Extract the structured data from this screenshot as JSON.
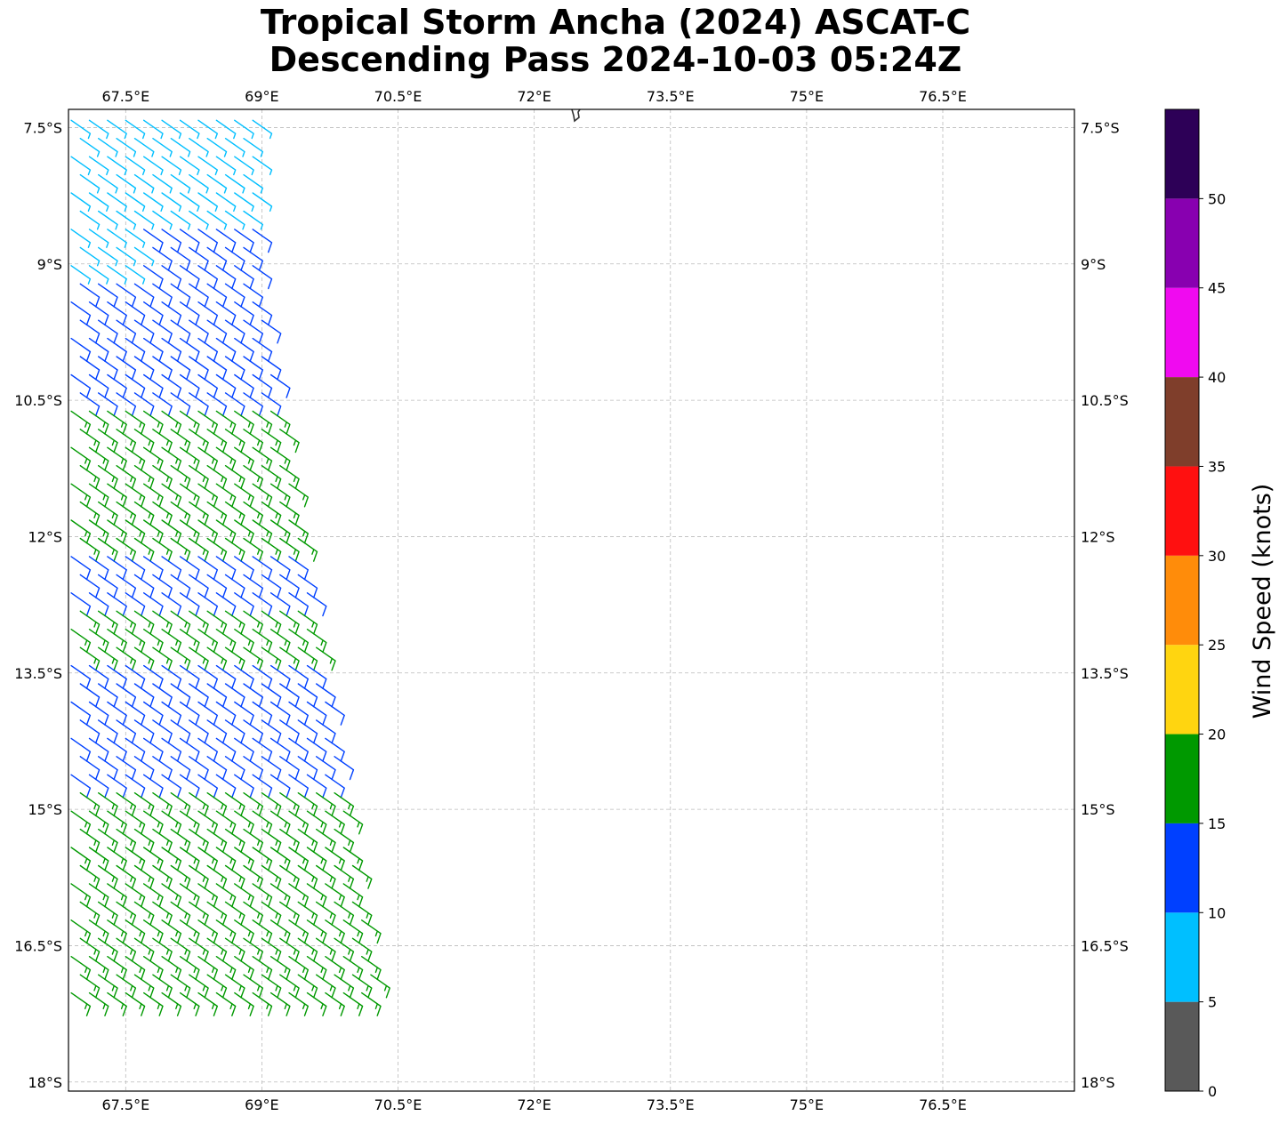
{
  "title": {
    "line1": "Tropical Storm Ancha (2024) ASCAT-C",
    "line2": "Descending Pass 2024-10-03 05:24Z"
  },
  "map": {
    "lon_range": [
      66.87,
      77.95
    ],
    "lat_range": [
      -18.1,
      -7.3
    ],
    "lon_ticks": [
      {
        "value": 67.5,
        "label": "67.5°E"
      },
      {
        "value": 69,
        "label": "69°E"
      },
      {
        "value": 70.5,
        "label": "70.5°E"
      },
      {
        "value": 72,
        "label": "72°E"
      },
      {
        "value": 73.5,
        "label": "73.5°E"
      },
      {
        "value": 75,
        "label": "75°E"
      },
      {
        "value": 76.5,
        "label": "76.5°E"
      }
    ],
    "lat_ticks": [
      {
        "value": -7.5,
        "label": "7.5°S"
      },
      {
        "value": -9,
        "label": "9°S"
      },
      {
        "value": -10.5,
        "label": "10.5°S"
      },
      {
        "value": -12,
        "label": "12°S"
      },
      {
        "value": -13.5,
        "label": "13.5°S"
      },
      {
        "value": -15,
        "label": "15°S"
      },
      {
        "value": -16.5,
        "label": "16.5°S"
      },
      {
        "value": -18,
        "label": "18°S"
      }
    ],
    "grid": true,
    "coastline_color": "#333333"
  },
  "colorbar": {
    "label": "Wind Speed (knots)",
    "bins": [
      {
        "min": 0,
        "max": 5,
        "color": "#595959"
      },
      {
        "min": 5,
        "max": 10,
        "color": "#00bfff"
      },
      {
        "min": 10,
        "max": 15,
        "color": "#0040ff"
      },
      {
        "min": 15,
        "max": 20,
        "color": "#009900"
      },
      {
        "min": 20,
        "max": 25,
        "color": "#ffd510"
      },
      {
        "min": 25,
        "max": 30,
        "color": "#ff8c0a"
      },
      {
        "min": 30,
        "max": 35,
        "color": "#ff1010"
      },
      {
        "min": 35,
        "max": 40,
        "color": "#7f3e2b"
      },
      {
        "min": 40,
        "max": 45,
        "color": "#f00af0"
      },
      {
        "min": 45,
        "max": 50,
        "color": "#8800b0"
      },
      {
        "min": 50,
        "max": 55,
        "color": "#2d0057"
      }
    ],
    "ticks": [
      "0",
      "5",
      "10",
      "15",
      "20",
      "25",
      "30",
      "35",
      "40",
      "45",
      "50"
    ]
  },
  "wind_field": {
    "direction_from_deg": 125,
    "bands": [
      {
        "lat_min": -8.45,
        "lat_max": -7.3,
        "speed": 8
      },
      {
        "lat_min": -9.2,
        "lat_max": -8.45,
        "speed": 8,
        "west_of_lon": 67.7
      },
      {
        "lat_min": -8.45,
        "lat_max": -10.45,
        "speed": 12
      },
      {
        "lat_min": -10.45,
        "lat_max": -12.1,
        "speed": 17
      },
      {
        "lat_min": -12.1,
        "lat_max": -12.7,
        "speed": 13
      },
      {
        "lat_min": -12.7,
        "lat_max": -13.3,
        "speed": 17
      },
      {
        "lat_min": -13.3,
        "lat_max": -14.75,
        "speed": 13
      },
      {
        "lat_min": -14.75,
        "lat_max": -17.1,
        "speed": 17
      }
    ]
  }
}
